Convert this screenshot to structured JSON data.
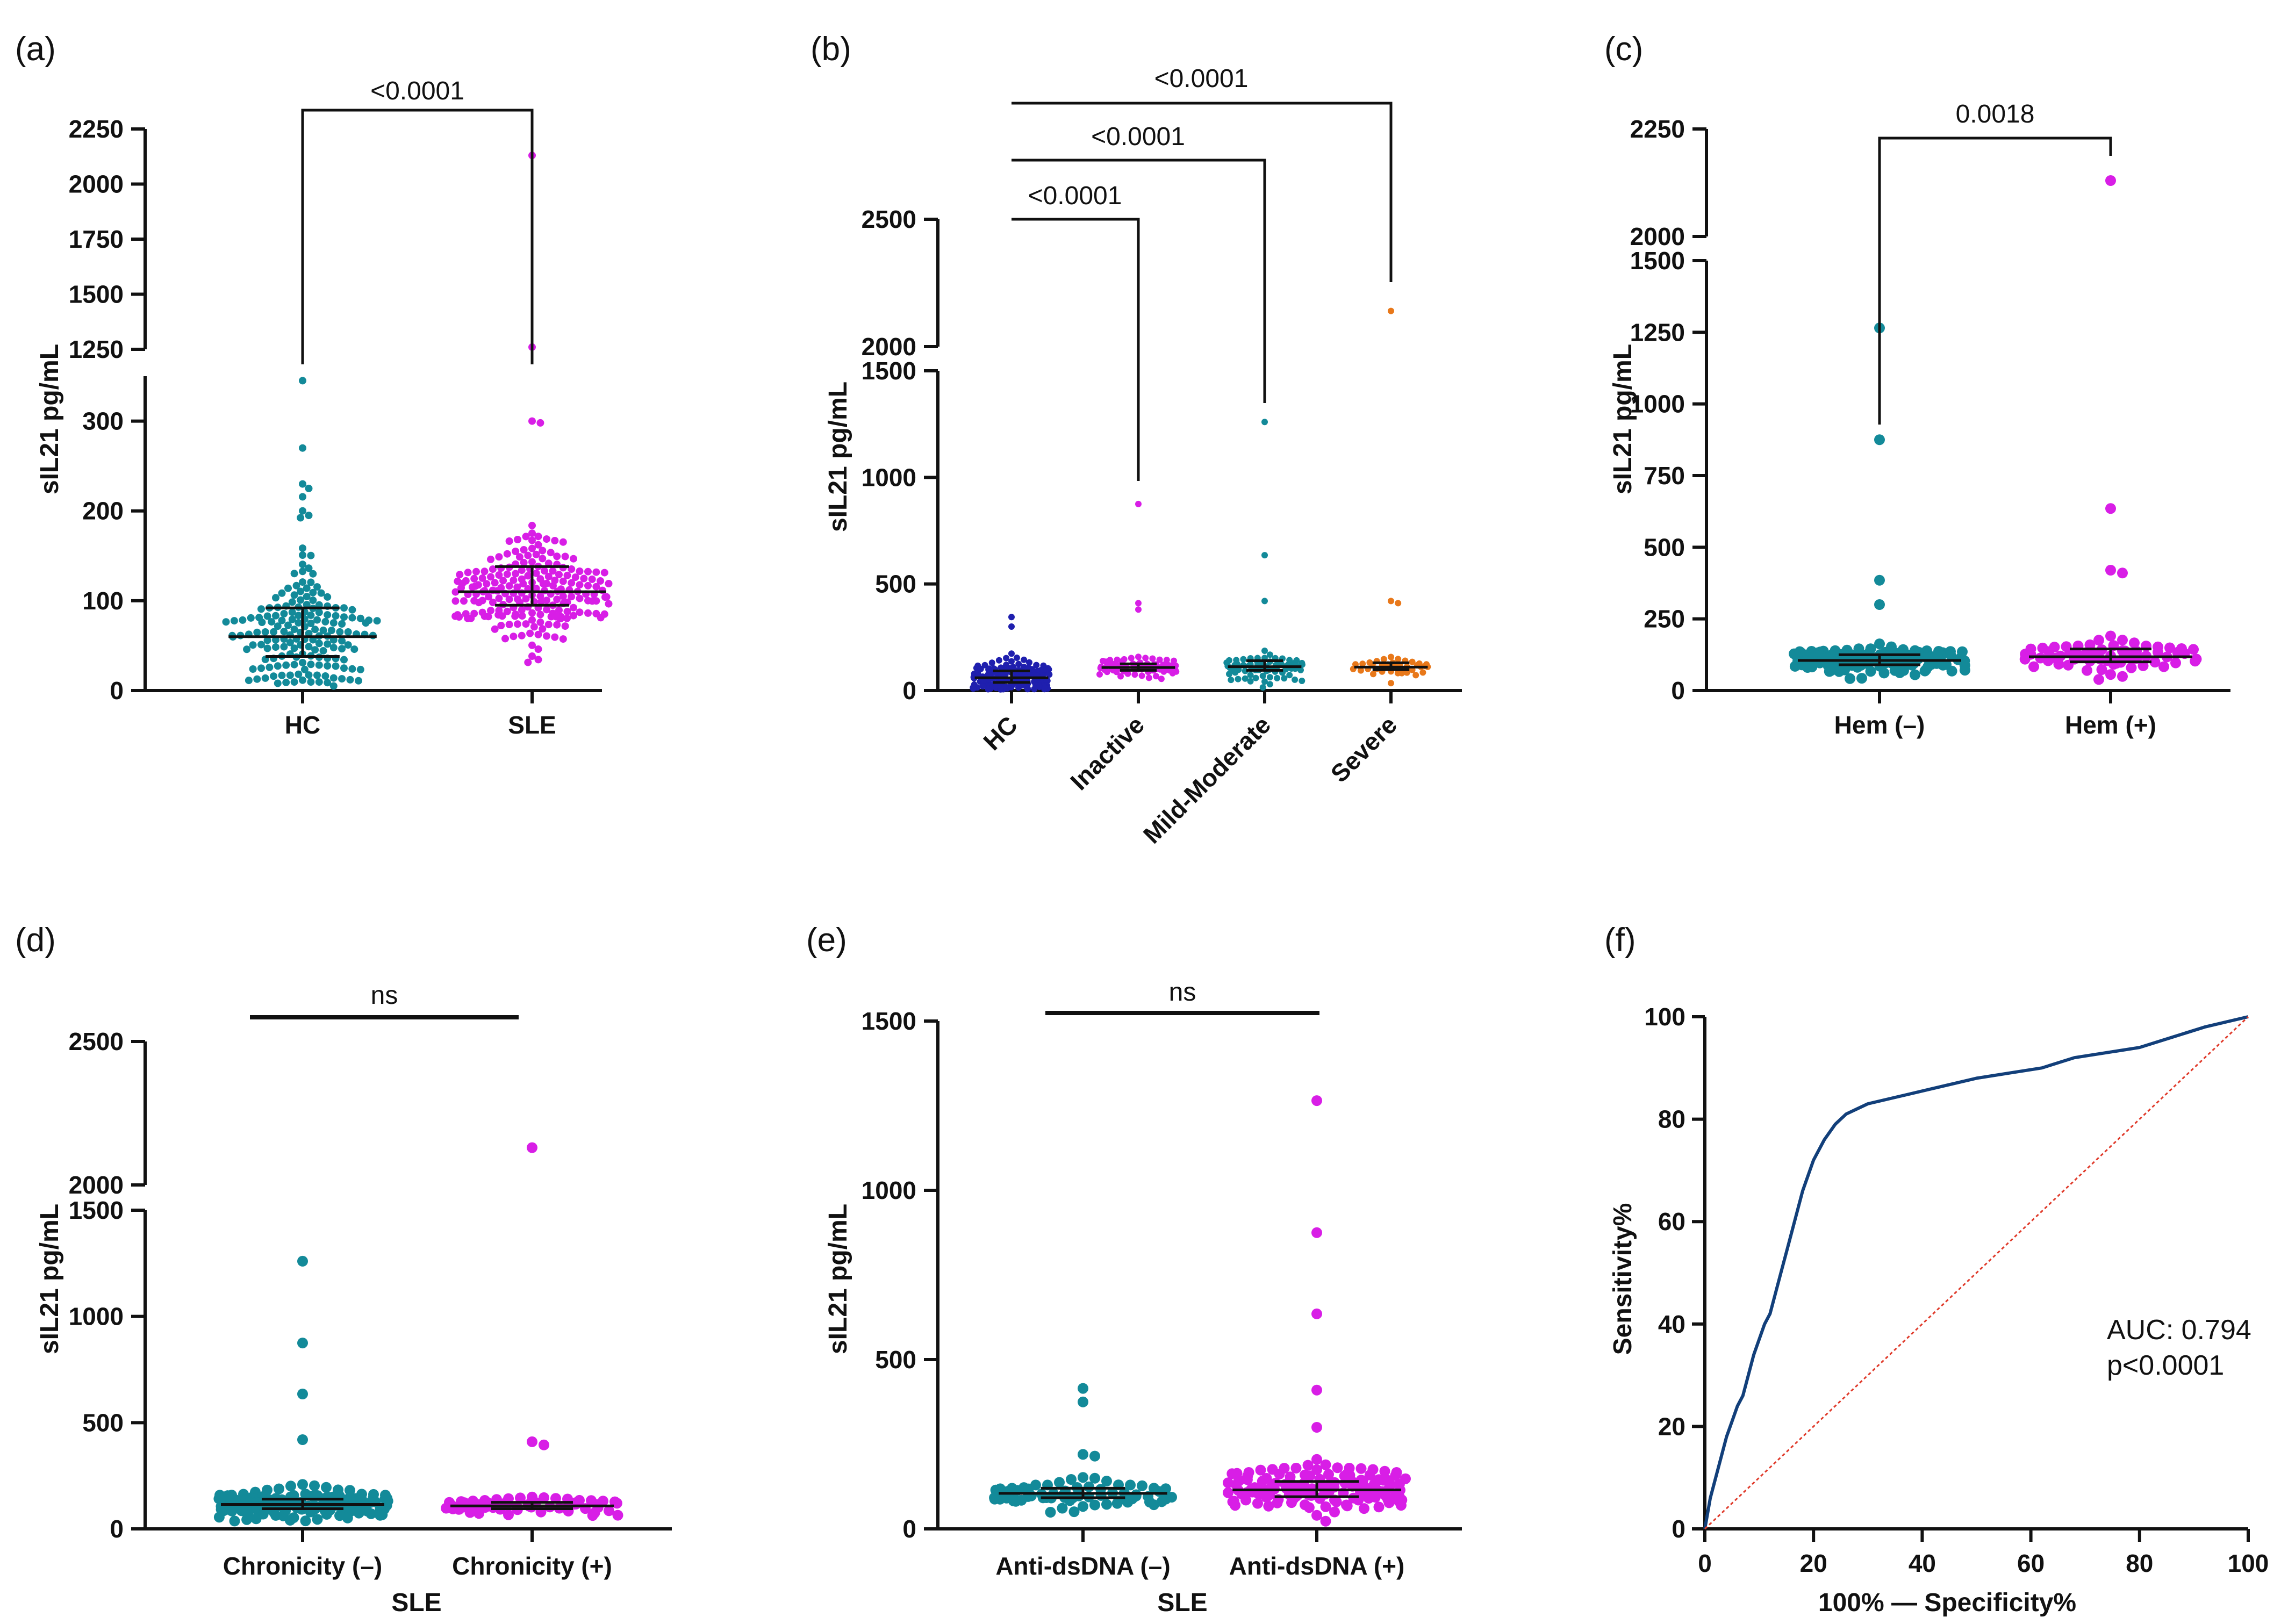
{
  "colors": {
    "teal": "#138a99",
    "magenta": "#d81ee6",
    "navy": "#1f1fae",
    "orange": "#e8781a",
    "roc": "#123f7a",
    "ref": "#e03a2a"
  },
  "chart_data": [
    {
      "panel": "(a)",
      "type": "scatter",
      "ylabel": "sIL21 pg/mL",
      "y_ticks_lower": [
        "0",
        "100",
        "200",
        "300"
      ],
      "y_ticks_upper": [
        "1250",
        "1500",
        "1750",
        "2000",
        "2250"
      ],
      "ylim_lower": [
        0,
        350
      ],
      "ylim_upper": [
        1250,
        2250
      ],
      "groups": [
        {
          "label": "HC",
          "color": "teal",
          "n": 170,
          "median": 60,
          "q1": 38,
          "q3": 92,
          "outliers": [
            345,
            270,
            230,
            225,
            200,
            195
          ]
        },
        {
          "label": "SLE",
          "color": "magenta",
          "n": 210,
          "median": 110,
          "q1": 95,
          "q3": 138,
          "outliers": [
            2130,
            1260,
            300,
            298
          ]
        }
      ],
      "comparisons": [
        {
          "text": "<0.0001",
          "from": 0,
          "to": 1
        }
      ]
    },
    {
      "panel": "(b)",
      "type": "scatter",
      "ylabel": "sIL21 pg/mL",
      "y_ticks_lower": [
        "0",
        "500",
        "1000",
        "1500"
      ],
      "y_ticks_upper": [
        "2000",
        "2500"
      ],
      "ylim_lower": [
        0,
        1500
      ],
      "ylim_upper": [
        2000,
        2500
      ],
      "groups": [
        {
          "label": "HC",
          "color": "navy",
          "n": 170,
          "median": 60,
          "q1": 38,
          "q3": 92,
          "outliers": [
            345,
            300
          ]
        },
        {
          "label": "Inactive",
          "color": "magenta",
          "n": 90,
          "median": 108,
          "q1": 95,
          "q3": 125,
          "outliers": [
            875,
            410,
            380
          ]
        },
        {
          "label": "Mild-Moderate",
          "color": "teal",
          "n": 80,
          "median": 112,
          "q1": 95,
          "q3": 140,
          "outliers": [
            1260,
            635,
            420
          ]
        },
        {
          "label": "Severe",
          "color": "orange",
          "n": 40,
          "median": 110,
          "q1": 98,
          "q3": 130,
          "outliers": [
            2140,
            420,
            410
          ]
        }
      ],
      "comparisons": [
        {
          "text": "<0.0001",
          "from": 0,
          "to": 1
        },
        {
          "text": "<0.0001",
          "from": 0,
          "to": 2
        },
        {
          "text": "<0.0001",
          "from": 0,
          "to": 3
        }
      ]
    },
    {
      "panel": "(c)",
      "type": "scatter",
      "ylabel": "sIL21 pg/mL",
      "y_ticks_lower": [
        "0",
        "250",
        "500",
        "750",
        "1000",
        "1250",
        "1500"
      ],
      "y_ticks_upper": [
        "2000",
        "2250"
      ],
      "ylim_lower": [
        0,
        1500
      ],
      "ylim_upper": [
        2000,
        2250
      ],
      "groups": [
        {
          "label": "Hem (–)",
          "color": "teal",
          "n": 150,
          "median": 105,
          "q1": 90,
          "q3": 125,
          "outliers": [
            1265,
            875,
            385,
            300
          ]
        },
        {
          "label": "Hem (+)",
          "color": "magenta",
          "n": 70,
          "median": 118,
          "q1": 100,
          "q3": 145,
          "outliers": [
            2130,
            635,
            420,
            410
          ]
        }
      ],
      "comparisons": [
        {
          "text": "0.0018",
          "from": 0,
          "to": 1
        }
      ]
    },
    {
      "panel": "(d)",
      "type": "scatter",
      "ylabel": "sIL21 pg/mL",
      "xlabel": "SLE",
      "y_ticks_lower": [
        "0",
        "500",
        "1000",
        "1500"
      ],
      "y_ticks_upper": [
        "2000",
        "2500"
      ],
      "ylim_lower": [
        0,
        1500
      ],
      "ylim_upper": [
        2000,
        2500
      ],
      "groups": [
        {
          "label": "Chronicity (–)",
          "color": "teal",
          "n": 160,
          "median": 115,
          "q1": 95,
          "q3": 140,
          "outliers": [
            1260,
            875,
            635,
            420
          ]
        },
        {
          "label": "Chronicity (+)",
          "color": "magenta",
          "n": 60,
          "median": 108,
          "q1": 95,
          "q3": 125,
          "outliers": [
            2130,
            410,
            395
          ]
        }
      ],
      "comparisons": [
        {
          "text": "ns",
          "from": 0,
          "to": 1
        }
      ]
    },
    {
      "panel": "(e)",
      "type": "scatter",
      "ylabel": "sIL21 pg/mL",
      "xlabel": "SLE",
      "y_ticks": [
        "0",
        "500",
        "1000",
        "1500"
      ],
      "ylim": [
        0,
        1500
      ],
      "groups": [
        {
          "label": "Anti-dsDNA (–)",
          "color": "teal",
          "n": 70,
          "median": 105,
          "q1": 92,
          "q3": 120,
          "outliers": [
            415,
            375,
            220,
            215
          ]
        },
        {
          "label": "Anti-dsDNA (+)",
          "color": "magenta",
          "n": 150,
          "median": 115,
          "q1": 95,
          "q3": 140,
          "outliers": [
            1265,
            875,
            635,
            410,
            300
          ]
        }
      ],
      "comparisons": [
        {
          "text": "ns",
          "from": 0,
          "to": 1
        }
      ]
    },
    {
      "panel": "(f)",
      "type": "line",
      "xlabel": "100% — Specificity%",
      "ylabel": "Sensitivity%",
      "xlim": [
        0,
        100
      ],
      "ylim": [
        0,
        100
      ],
      "x_ticks": [
        "0",
        "20",
        "40",
        "60",
        "80",
        "100"
      ],
      "y_ticks": [
        "0",
        "20",
        "40",
        "60",
        "80",
        "100"
      ],
      "series": [
        {
          "name": "ROC",
          "color": "roc",
          "x": [
            0,
            0.5,
            1,
            2,
            3,
            4,
            5,
            6,
            7,
            8,
            9,
            10,
            11,
            12,
            13,
            14,
            15,
            16,
            17,
            18,
            19,
            20,
            22,
            24,
            26,
            28,
            30,
            34,
            38,
            42,
            46,
            50,
            56,
            62,
            68,
            74,
            80,
            86,
            92,
            96,
            100
          ],
          "y": [
            0,
            3,
            6,
            10,
            14,
            18,
            21,
            24,
            26,
            30,
            34,
            37,
            40,
            42,
            46,
            50,
            54,
            58,
            62,
            66,
            69,
            72,
            76,
            79,
            81,
            82,
            83,
            84,
            85,
            86,
            87,
            88,
            89,
            90,
            92,
            93,
            94,
            96,
            98,
            99,
            100
          ]
        },
        {
          "name": "Reference",
          "color": "ref",
          "x": [
            0,
            100
          ],
          "y": [
            0,
            100
          ]
        }
      ],
      "annotations": [
        "AUC: 0.794",
        "p<0.0001"
      ]
    }
  ]
}
